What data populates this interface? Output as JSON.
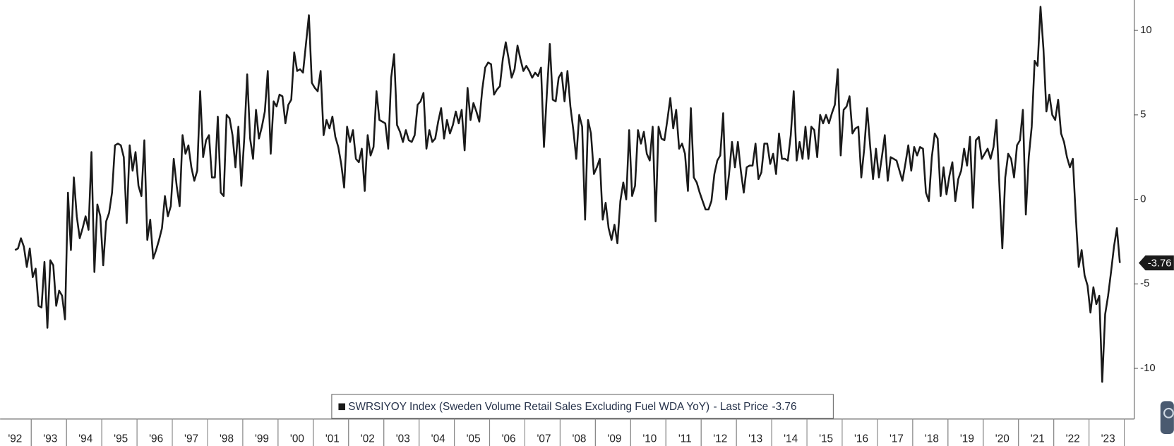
{
  "chart_data": {
    "type": "line",
    "categories": [
      "'92",
      null,
      null,
      null,
      null,
      null,
      null,
      null,
      null,
      null,
      null,
      null,
      "'93",
      null,
      null,
      null,
      null,
      null,
      null,
      null,
      null,
      null,
      null,
      null,
      "'94",
      null,
      null,
      null,
      null,
      null,
      null,
      null,
      null,
      null,
      null,
      null,
      "'95",
      null,
      null,
      null,
      null,
      null,
      null,
      null,
      null,
      null,
      null,
      null,
      "'96",
      null,
      null,
      null,
      null,
      null,
      null,
      null,
      null,
      null,
      null,
      null,
      "'97",
      null,
      null,
      null,
      null,
      null,
      null,
      null,
      null,
      null,
      null,
      null,
      "'98",
      null,
      null,
      null,
      null,
      null,
      null,
      null,
      null,
      null,
      null,
      null,
      "'99",
      null,
      null,
      null,
      null,
      null,
      null,
      null,
      null,
      null,
      null,
      null,
      "'00",
      null,
      null,
      null,
      null,
      null,
      null,
      null,
      null,
      null,
      null,
      null,
      "'01",
      null,
      null,
      null,
      null,
      null,
      null,
      null,
      null,
      null,
      null,
      null,
      "'02",
      null,
      null,
      null,
      null,
      null,
      null,
      null,
      null,
      null,
      null,
      null,
      "'03",
      null,
      null,
      null,
      null,
      null,
      null,
      null,
      null,
      null,
      null,
      null,
      "'04",
      null,
      null,
      null,
      null,
      null,
      null,
      null,
      null,
      null,
      null,
      null,
      "'05",
      null,
      null,
      null,
      null,
      null,
      null,
      null,
      null,
      null,
      null,
      null,
      "'06",
      null,
      null,
      null,
      null,
      null,
      null,
      null,
      null,
      null,
      null,
      null,
      "'07",
      null,
      null,
      null,
      null,
      null,
      null,
      null,
      null,
      null,
      null,
      null,
      "'08",
      null,
      null,
      null,
      null,
      null,
      null,
      null,
      null,
      null,
      null,
      null,
      "'09",
      null,
      null,
      null,
      null,
      null,
      null,
      null,
      null,
      null,
      null,
      null,
      "'10",
      null,
      null,
      null,
      null,
      null,
      null,
      null,
      null,
      null,
      null,
      null,
      "'11",
      null,
      null,
      null,
      null,
      null,
      null,
      null,
      null,
      null,
      null,
      null,
      "'12",
      null,
      null,
      null,
      null,
      null,
      null,
      null,
      null,
      null,
      null,
      null,
      "'13",
      null,
      null,
      null,
      null,
      null,
      null,
      null,
      null,
      null,
      null,
      null,
      "'14",
      null,
      null,
      null,
      null,
      null,
      null,
      null,
      null,
      null,
      null,
      null,
      "'15",
      null,
      null,
      null,
      null,
      null,
      null,
      null,
      null,
      null,
      null,
      null,
      "'16",
      null,
      null,
      null,
      null,
      null,
      null,
      null,
      null,
      null,
      null,
      null,
      "'17",
      null,
      null,
      null,
      null,
      null,
      null,
      null,
      null,
      null,
      null,
      null,
      "'18",
      null,
      null,
      null,
      null,
      null,
      null,
      null,
      null,
      null,
      null,
      null,
      "'19",
      null,
      null,
      null,
      null,
      null,
      null,
      null,
      null,
      null,
      null,
      null,
      "'20",
      null,
      null,
      null,
      null,
      null,
      null,
      null,
      null,
      null,
      null,
      null,
      "'21",
      null,
      null,
      null,
      null,
      null,
      null,
      null,
      null,
      null,
      null,
      null,
      "'22",
      null,
      null,
      null,
      null,
      null,
      null,
      null,
      null,
      null,
      null,
      null,
      "'23",
      null,
      null,
      null,
      null
    ],
    "series": [
      {
        "name": "SWRSIYOY Index (Sweden Volume Retail Sales Excluding Fuel WDA YoY)",
        "color": "#1a1a1a",
        "values": [
          -3.0,
          -2.9,
          -2.3,
          -2.8,
          -4.0,
          -2.9,
          -4.6,
          -4.1,
          -6.3,
          -6.4,
          -3.7,
          -7.6,
          -3.6,
          -3.9,
          -6.3,
          -5.4,
          -5.7,
          -7.1,
          0.4,
          -3.0,
          1.3,
          -1.0,
          -2.3,
          -1.7,
          -1.0,
          -1.8,
          2.8,
          -4.3,
          -0.3,
          -1.0,
          -3.9,
          -1.3,
          -0.8,
          0.4,
          3.2,
          3.3,
          3.2,
          2.5,
          -1.4,
          3.2,
          1.7,
          2.8,
          0.8,
          0.2,
          3.5,
          -2.4,
          -1.2,
          -3.5,
          -3.0,
          -2.4,
          -1.7,
          0.2,
          -1.0,
          -0.4,
          2.4,
          0.8,
          -0.4,
          3.8,
          2.7,
          3.2,
          1.9,
          1.1,
          1.7,
          6.4,
          2.5,
          3.5,
          3.8,
          1.3,
          1.3,
          4.9,
          0.4,
          0.2,
          5.0,
          4.8,
          3.8,
          1.9,
          4.3,
          0.8,
          3.6,
          7.4,
          3.6,
          2.4,
          5.3,
          3.6,
          4.3,
          5.2,
          7.6,
          2.7,
          5.8,
          5.5,
          6.2,
          6.1,
          4.5,
          5.6,
          5.9,
          8.7,
          7.6,
          7.7,
          7.5,
          9.2,
          10.9,
          6.9,
          6.6,
          6.4,
          7.6,
          3.8,
          4.7,
          4.2,
          4.9,
          3.7,
          3.1,
          2.1,
          0.7,
          4.3,
          3.4,
          4.1,
          2.4,
          2.2,
          3.0,
          0.5,
          3.8,
          2.6,
          3.1,
          6.4,
          4.7,
          4.6,
          4.5,
          3.0,
          7.2,
          8.6,
          4.4,
          4.0,
          3.4,
          4.1,
          3.5,
          3.4,
          3.8,
          5.6,
          5.8,
          6.3,
          3.0,
          4.1,
          3.4,
          3.6,
          4.6,
          5.4,
          3.6,
          4.7,
          3.9,
          4.4,
          5.2,
          4.5,
          5.3,
          2.9,
          6.6,
          4.7,
          5.7,
          5.2,
          4.6,
          6.5,
          7.8,
          8.1,
          8.0,
          6.2,
          6.5,
          6.7,
          8.3,
          9.3,
          8.3,
          7.2,
          7.7,
          9.1,
          8.3,
          7.6,
          7.9,
          7.6,
          7.2,
          7.5,
          7.3,
          7.8,
          3.1,
          6.3,
          9.2,
          5.9,
          5.8,
          7.2,
          7.5,
          5.8,
          7.6,
          5.5,
          4.1,
          2.4,
          5.0,
          4.3,
          -1.2,
          4.7,
          3.9,
          1.5,
          1.9,
          2.4,
          -1.2,
          -0.2,
          -1.7,
          -2.4,
          -1.5,
          -2.6,
          -0.1,
          1.0,
          0.0,
          4.1,
          0.2,
          0.8,
          4.1,
          3.3,
          4.0,
          2.7,
          2.3,
          4.3,
          -1.3,
          4.3,
          3.6,
          3.5,
          4.7,
          6.0,
          4.2,
          5.3,
          3.0,
          3.3,
          2.7,
          0.5,
          5.4,
          1.3,
          1.0,
          0.4,
          -0.1,
          -0.6,
          -0.6,
          -0.1,
          1.5,
          2.3,
          2.6,
          5.1,
          0.0,
          1.5,
          3.4,
          1.9,
          3.4,
          1.7,
          0.4,
          1.9,
          2.0,
          2.0,
          3.3,
          1.2,
          1.6,
          3.3,
          3.3,
          2.1,
          2.7,
          1.5,
          3.9,
          2.4,
          2.4,
          2.3,
          3.8,
          6.4,
          2.3,
          3.4,
          2.4,
          4.3,
          2.4,
          4.3,
          4.1,
          2.5,
          5.0,
          4.5,
          5.0,
          4.5,
          5.1,
          5.6,
          7.7,
          2.6,
          5.3,
          5.5,
          6.1,
          3.9,
          4.2,
          4.3,
          1.3,
          3.0,
          5.4,
          3.2,
          1.2,
          3.0,
          1.3,
          2.5,
          3.8,
          1.1,
          2.5,
          2.4,
          2.3,
          1.7,
          1.1,
          2.1,
          3.2,
          1.7,
          3.1,
          2.6,
          3.1,
          3.0,
          0.4,
          -0.1,
          2.5,
          3.9,
          3.6,
          0.2,
          1.9,
          0.3,
          1.4,
          2.2,
          -0.1,
          1.2,
          1.7,
          3.0,
          2.0,
          3.7,
          -0.5,
          3.5,
          3.7,
          2.4,
          2.7,
          3.0,
          2.4,
          3.1,
          4.7,
          0.8,
          -2.9,
          1.3,
          2.7,
          2.4,
          1.3,
          3.2,
          3.5,
          5.3,
          -0.9,
          2.5,
          4.3,
          8.2,
          7.9,
          11.4,
          8.9,
          5.2,
          6.2,
          5.0,
          4.7,
          5.9,
          3.9,
          3.4,
          2.5,
          1.9,
          2.4,
          -1.0,
          -4.0,
          -3.0,
          -4.5,
          -5.1,
          -6.7,
          -5.2,
          -6.2,
          -5.7,
          -10.8,
          -6.8,
          -5.7,
          -4.3,
          -2.8,
          -1.7,
          -3.76
        ]
      }
    ],
    "legend_suffix": "- Last Price",
    "ylim": [
      -13,
      11.8
    ],
    "yticks": [
      -10,
      -5,
      0,
      5,
      10
    ],
    "grid": false
  }
}
